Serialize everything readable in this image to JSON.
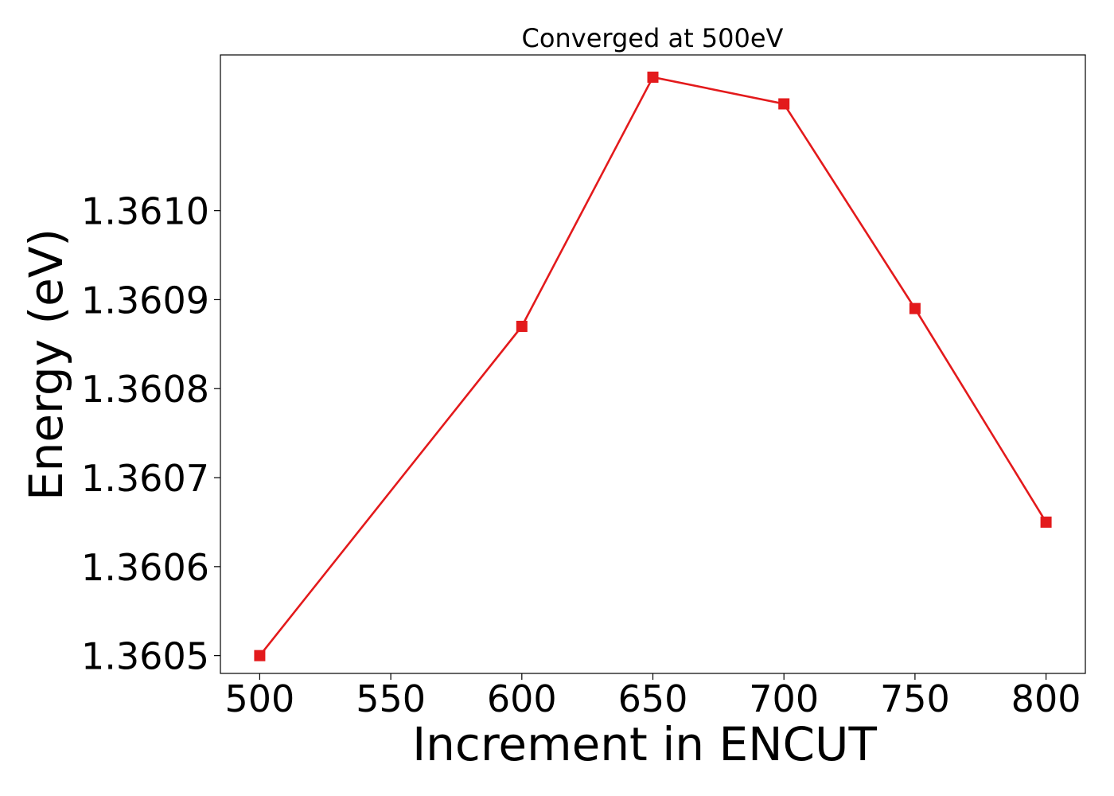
{
  "chart_data": {
    "type": "line",
    "title": "Converged at 500eV",
    "xlabel": "Increment in ENCUT",
    "ylabel": "Energy (eV)",
    "x": [
      500,
      600,
      650,
      700,
      750,
      800
    ],
    "series": [
      {
        "values": [
          1.3605,
          1.36087,
          1.36115,
          1.36112,
          1.36089,
          1.36065
        ]
      }
    ],
    "xticks": [
      500,
      550,
      600,
      650,
      700,
      750,
      800
    ],
    "xtick_labels": [
      "500",
      "550",
      "600",
      "650",
      "700",
      "750",
      "800"
    ],
    "yticks": [
      1.3605,
      1.3606,
      1.3607,
      1.3608,
      1.3609,
      1.361
    ],
    "ytick_labels": [
      "1.3605",
      "1.3606",
      "1.3607",
      "1.3608",
      "1.3609",
      "1.3610"
    ],
    "xlim": [
      485,
      815
    ],
    "ylim": [
      1.36048,
      1.361175
    ],
    "grid": false,
    "marker": "square",
    "line_color": "#e31a1c"
  }
}
